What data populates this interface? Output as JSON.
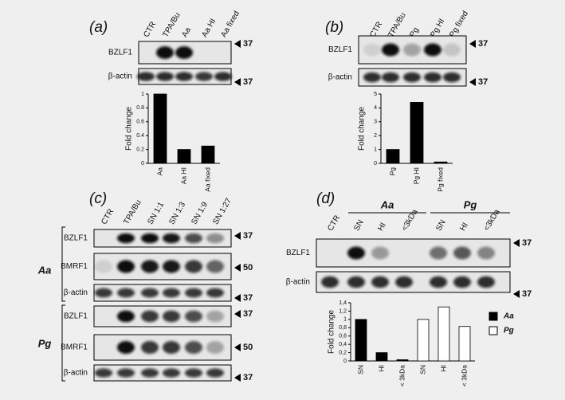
{
  "panels": [
    {
      "label": "(a)",
      "lanes": [
        "CTR",
        "TPA/Bu",
        "Aa",
        "Aa HI",
        "Aa fixed"
      ],
      "rows": [
        {
          "name": "BZLF1",
          "marker": "37"
        },
        {
          "name": "β-actin",
          "marker": "37"
        }
      ]
    },
    {
      "label": "(b)",
      "lanes": [
        "CTR",
        "TPA/Bu",
        "Pg",
        "Pg HI",
        "Pg fixed"
      ],
      "rows": [
        {
          "name": "BZLF1",
          "marker": "37"
        },
        {
          "name": "β-actin",
          "marker": "37"
        }
      ]
    },
    {
      "label": "(c)",
      "lanes": [
        "CTR",
        "TPA/Bu",
        "SN 1:1",
        "SN 1:3",
        "SN 1:9",
        "SN 1:27"
      ],
      "groups": [
        {
          "name": "Aa",
          "rows": [
            {
              "name": "BZLF1",
              "marker": "37"
            },
            {
              "name": "BMRF1",
              "marker": "50"
            },
            {
              "name": "β-actin",
              "marker": "37"
            }
          ]
        },
        {
          "name": "Pg",
          "rows": [
            {
              "name": "BZLF1",
              "marker": "37"
            },
            {
              "name": "BMRF1",
              "marker": "50"
            },
            {
              "name": "β-actin",
              "marker": "37"
            }
          ]
        }
      ]
    },
    {
      "label": "(d)",
      "lane_groups": [
        "Aa",
        "Pg"
      ],
      "lanes": [
        "CTR",
        "SN",
        "HI",
        "<3kDa",
        "SN",
        "HI",
        "<3kDa"
      ],
      "rows": [
        {
          "name": "BZLF1",
          "marker": "37"
        },
        {
          "name": "β-actin",
          "marker": "37"
        }
      ]
    }
  ],
  "chart_data": [
    {
      "type": "bar",
      "y_label": "Fold change",
      "categories": [
        "Aa",
        "Aa HI",
        "Aa fixed"
      ],
      "values": [
        1,
        0.2,
        0.25
      ],
      "color": "#000000",
      "ylim": [
        0,
        1
      ],
      "yticks": [
        0,
        0.2,
        0.4,
        0.6,
        0.8,
        1
      ]
    },
    {
      "type": "bar",
      "y_label": "Fold change",
      "categories": [
        "Pg",
        "Pg HI",
        "Pg fixed"
      ],
      "values": [
        1,
        4.4,
        0.1
      ],
      "color": "#000000",
      "ylim": [
        0,
        5
      ],
      "yticks": [
        0,
        1,
        2,
        3,
        4,
        5
      ]
    },
    {
      "type": "bar",
      "y_label": "Fold change",
      "categories": [
        "SN",
        "HI",
        "< 3kDa",
        "SN",
        "HI",
        "< 3kDa"
      ],
      "series": [
        {
          "name": "Aa",
          "color": "#000000",
          "values": [
            1,
            0.2,
            0.03,
            null,
            null,
            null
          ]
        },
        {
          "name": "Pg",
          "color": "#ffffff",
          "values": [
            null,
            null,
            null,
            1,
            1.3,
            0.83
          ]
        }
      ],
      "ylim": [
        0,
        1.4
      ],
      "yticks": [
        0,
        {
          "value": 0.2,
          "label": "0,2"
        },
        {
          "value": 0.4,
          "label": "0,4"
        },
        {
          "value": 0.6,
          "label": "0,6"
        },
        {
          "value": 0.8,
          "label": "0,8"
        },
        1,
        {
          "value": 1.2,
          "label": "1,2"
        },
        {
          "value": 1.4,
          "label": "1,4"
        }
      ]
    }
  ]
}
